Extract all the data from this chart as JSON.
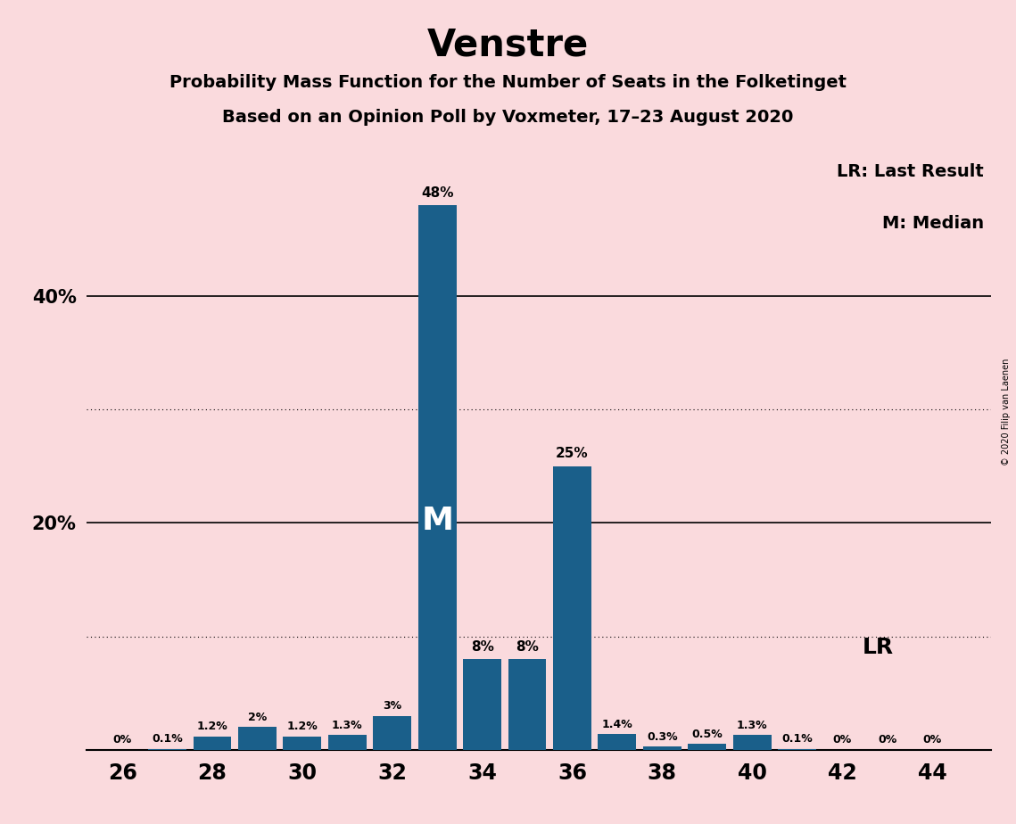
{
  "title": "Venstre",
  "subtitle1": "Probability Mass Function for the Number of Seats in the Folketinget",
  "subtitle2": "Based on an Opinion Poll by Voxmeter, 17–23 August 2020",
  "seats": [
    26,
    27,
    28,
    29,
    30,
    31,
    32,
    33,
    34,
    35,
    36,
    37,
    38,
    39,
    40,
    41,
    42,
    43,
    44
  ],
  "probabilities": [
    0.0,
    0.1,
    1.2,
    2.0,
    1.2,
    1.3,
    3.0,
    48.0,
    8.0,
    8.0,
    25.0,
    1.4,
    0.3,
    0.5,
    1.3,
    0.1,
    0.0,
    0.0,
    0.0
  ],
  "prob_labels": [
    "0%",
    "0.1%",
    "1.2%",
    "2%",
    "1.2%",
    "1.3%",
    "3%",
    "48%",
    "8%",
    "8%",
    "25%",
    "1.4%",
    "0.3%",
    "0.5%",
    "1.3%",
    "0.1%",
    "0%",
    "0%",
    "0%"
  ],
  "bar_color": "#1a5f8a",
  "background_color": "#fadadd",
  "median_seat": 33,
  "lr_seat": 43,
  "solid_gridlines": [
    20,
    40
  ],
  "dotted_gridlines": [
    10,
    30
  ],
  "copyright_text": "© 2020 Filip van Laenen",
  "legend_lr": "LR: Last Result",
  "legend_m": "M: Median",
  "lr_label": "LR",
  "ylim_max": 53,
  "xlim_min": 25.2,
  "xlim_max": 45.3,
  "bar_width": 0.85,
  "title_fontsize": 30,
  "subtitle_fontsize": 14,
  "ytick_fontsize": 15,
  "xtick_fontsize": 17,
  "label_fontsize_small": 9,
  "label_fontsize_large": 11,
  "median_label_fontsize": 26,
  "lr_label_fontsize": 18,
  "legend_fontsize": 14
}
